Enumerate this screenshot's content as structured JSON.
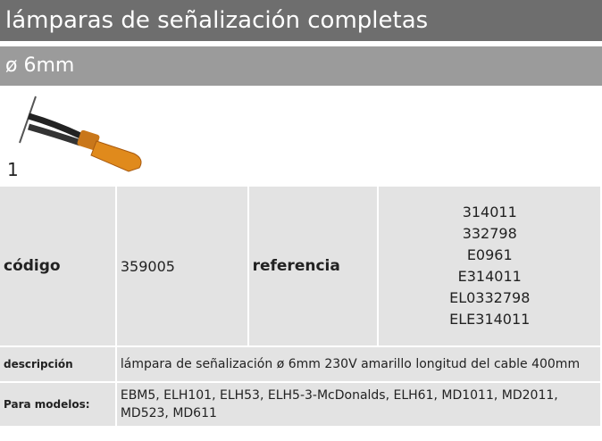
{
  "header": {
    "title": "lámparas de señalización completas",
    "subtitle": "ø 6mm"
  },
  "item": {
    "number": "1"
  },
  "table": {
    "code_label": "código",
    "code": "359005",
    "reference_label": "referencia",
    "references": [
      "314011",
      "332798",
      "E0961",
      "E314011",
      "EL0332798",
      "ELE314011"
    ],
    "description_label": "descripción",
    "description": "lámpara de señalización  ø 6mm 230V amarillo longitud del cable 400mm",
    "models_label": "Para modelos:",
    "models": "EBM5, ELH101, ELH53, ELH5-3-McDonalds, ELH61, MD1011, MD2011, MD523, MD611"
  }
}
